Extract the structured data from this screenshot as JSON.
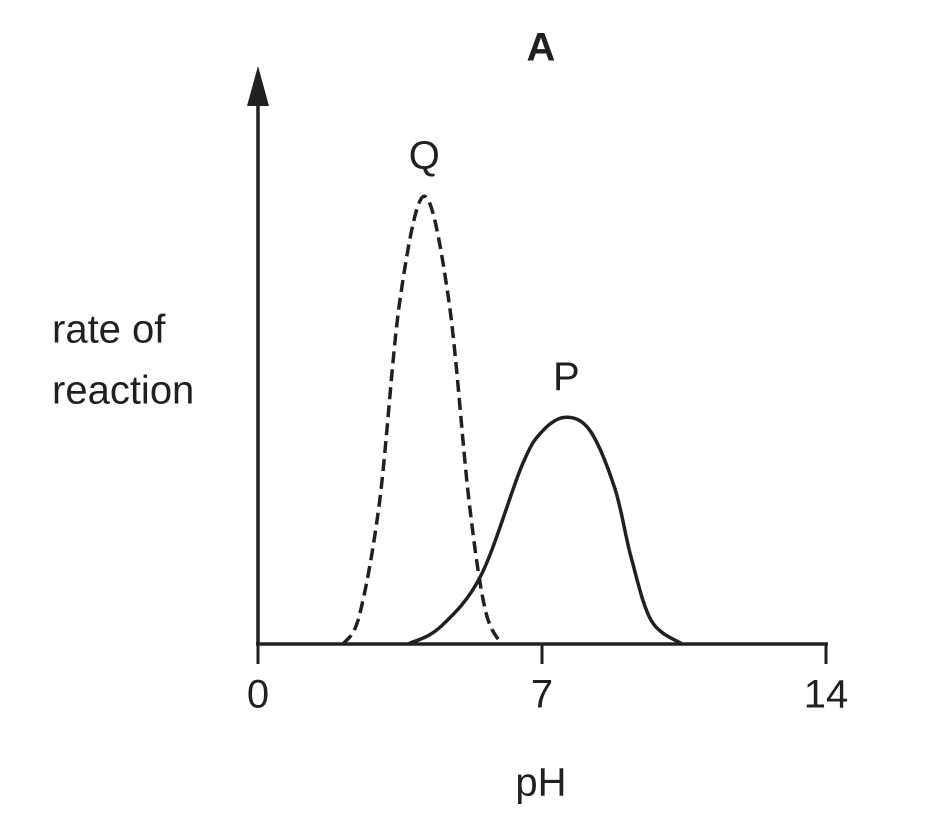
{
  "chart_data": {
    "type": "line",
    "title": "A",
    "xlabel": "pH",
    "ylabel": [
      "rate of",
      "reaction"
    ],
    "xlim": [
      0,
      14
    ],
    "xticks": [
      0,
      7,
      14
    ],
    "ylim": [
      0,
      100
    ],
    "series": [
      {
        "name": "Q",
        "color": "#231f20",
        "dashed": true,
        "x": [
          2.1,
          2.5,
          3.0,
          3.5,
          4.1,
          4.7,
          5.2,
          5.6,
          6.0
        ],
        "values": [
          0,
          5,
          25,
          60,
          78,
          60,
          25,
          6,
          0
        ]
      },
      {
        "name": "P",
        "color": "#231f20",
        "dashed": false,
        "x": [
          3.7,
          4.5,
          5.5,
          6.5,
          7.0,
          7.6,
          8.2,
          8.8,
          9.2,
          9.7,
          10.45
        ],
        "values": [
          0,
          3,
          12,
          31,
          37,
          39.5,
          37,
          27,
          15,
          4,
          0
        ]
      }
    ]
  }
}
